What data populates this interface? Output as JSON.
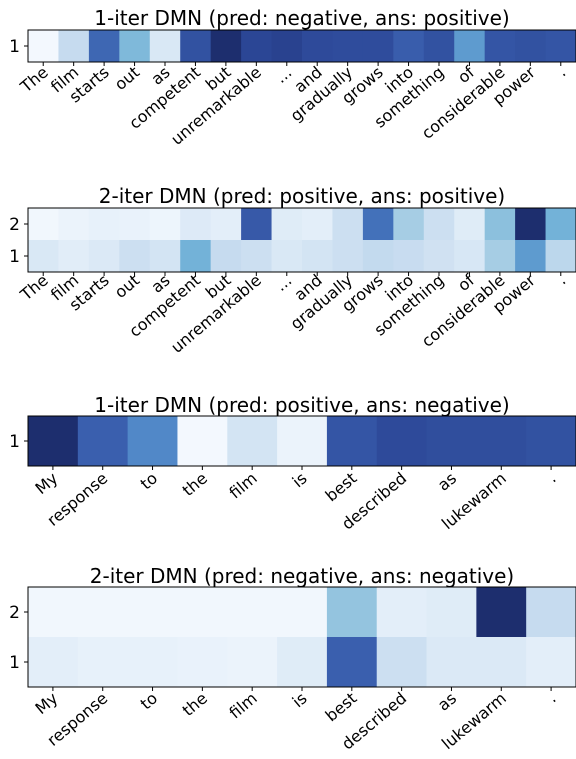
{
  "chart_data": [
    {
      "type": "heatmap",
      "title": "1-iter DMN (pred: negative, ans: positive)",
      "tokens": [
        "The",
        "film",
        "starts",
        "out",
        "as",
        "competent",
        "but",
        "unremarkable",
        "...",
        "and",
        "gradually",
        "grows",
        "into",
        "something",
        "of",
        "considerable",
        "power",
        "."
      ],
      "rows": [
        {
          "label": "1",
          "values": [
            0.02,
            0.25,
            0.72,
            0.45,
            0.15,
            0.82,
            1.0,
            0.88,
            0.9,
            0.86,
            0.85,
            0.85,
            0.76,
            0.82,
            0.55,
            0.8,
            0.82,
            0.8
          ]
        }
      ]
    },
    {
      "type": "heatmap",
      "title": "2-iter DMN (pred: positive, ans: positive)",
      "tokens": [
        "The",
        "film",
        "starts",
        "out",
        "as",
        "competent",
        "but",
        "unremarkable",
        "...",
        "and",
        "gradually",
        "grows",
        "into",
        "something",
        "of",
        "considerable",
        "power",
        "."
      ],
      "rows": [
        {
          "label": "2",
          "values": [
            0.03,
            0.06,
            0.08,
            0.07,
            0.05,
            0.13,
            0.1,
            0.78,
            0.12,
            0.1,
            0.22,
            0.68,
            0.35,
            0.22,
            0.12,
            0.42,
            1.0,
            0.48
          ]
        },
        {
          "label": "1",
          "values": [
            0.15,
            0.11,
            0.14,
            0.22,
            0.18,
            0.48,
            0.25,
            0.22,
            0.15,
            0.18,
            0.22,
            0.26,
            0.24,
            0.2,
            0.16,
            0.35,
            0.55,
            0.28
          ]
        }
      ]
    },
    {
      "type": "heatmap",
      "title": "1-iter DMN (pred: positive, ans: negative)",
      "tokens": [
        "My",
        "response",
        "to",
        "the",
        "film",
        "is",
        "best",
        "described",
        "as",
        "lukewarm",
        "."
      ],
      "rows": [
        {
          "label": "1",
          "values": [
            1.0,
            0.75,
            0.6,
            0.02,
            0.18,
            0.06,
            0.8,
            0.86,
            0.84,
            0.84,
            0.82
          ]
        }
      ]
    },
    {
      "type": "heatmap",
      "title": "2-iter DMN (pred: negative, ans: negative)",
      "tokens": [
        "My",
        "response",
        "to",
        "the",
        "film",
        "is",
        "best",
        "described",
        "as",
        "lukewarm",
        "."
      ],
      "rows": [
        {
          "label": "2",
          "values": [
            0.03,
            0.03,
            0.03,
            0.03,
            0.03,
            0.03,
            0.4,
            0.1,
            0.12,
            1.0,
            0.25
          ]
        },
        {
          "label": "1",
          "values": [
            0.1,
            0.08,
            0.08,
            0.07,
            0.06,
            0.12,
            0.75,
            0.22,
            0.14,
            0.14,
            0.1
          ]
        }
      ]
    }
  ],
  "colormap": [
    "#f7fbff",
    "#deebf7",
    "#c6dbef",
    "#9ecae1",
    "#6baed6",
    "#4a7fc4",
    "#3a5fae",
    "#2c4797",
    "#1d2e6e"
  ]
}
